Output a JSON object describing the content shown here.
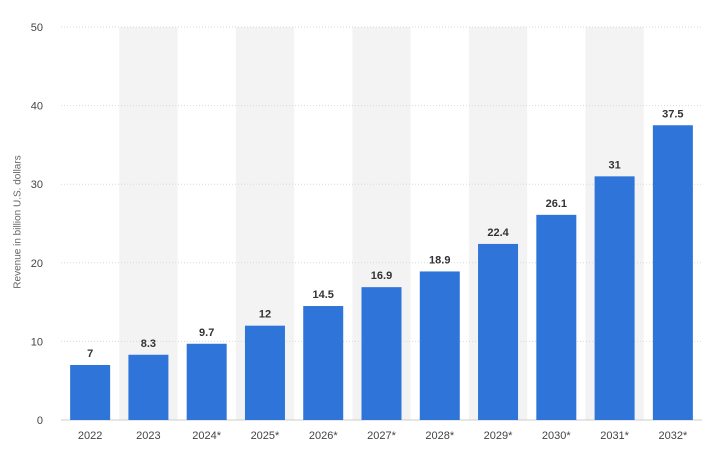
{
  "chart_data": {
    "type": "bar",
    "title": "",
    "xlabel": "",
    "ylabel": "Revenue in billion U.S. dollars",
    "categories": [
      "2022",
      "2023",
      "2024*",
      "2025*",
      "2026*",
      "2027*",
      "2028*",
      "2029*",
      "2030*",
      "2031*",
      "2032*"
    ],
    "values": [
      7,
      8.3,
      9.7,
      12,
      14.5,
      16.9,
      18.9,
      22.4,
      26.1,
      31,
      37.5
    ],
    "data_labels": [
      "7",
      "8.3",
      "9.7",
      "12",
      "14.5",
      "16.9",
      "18.9",
      "22.4",
      "26.1",
      "31",
      "37.5"
    ],
    "ylim": [
      0,
      50
    ],
    "yticks": [
      0,
      10,
      20,
      30,
      40,
      50
    ],
    "ytick_labels": [
      "0",
      "10",
      "20",
      "30",
      "40",
      "50"
    ],
    "grid": true,
    "legend": "none",
    "colors": {
      "bar": "#2f74d9",
      "grid": "#d9d9d9",
      "band": "#f3f3f3",
      "tick_text": "#444444",
      "value_text": "#333333"
    }
  }
}
